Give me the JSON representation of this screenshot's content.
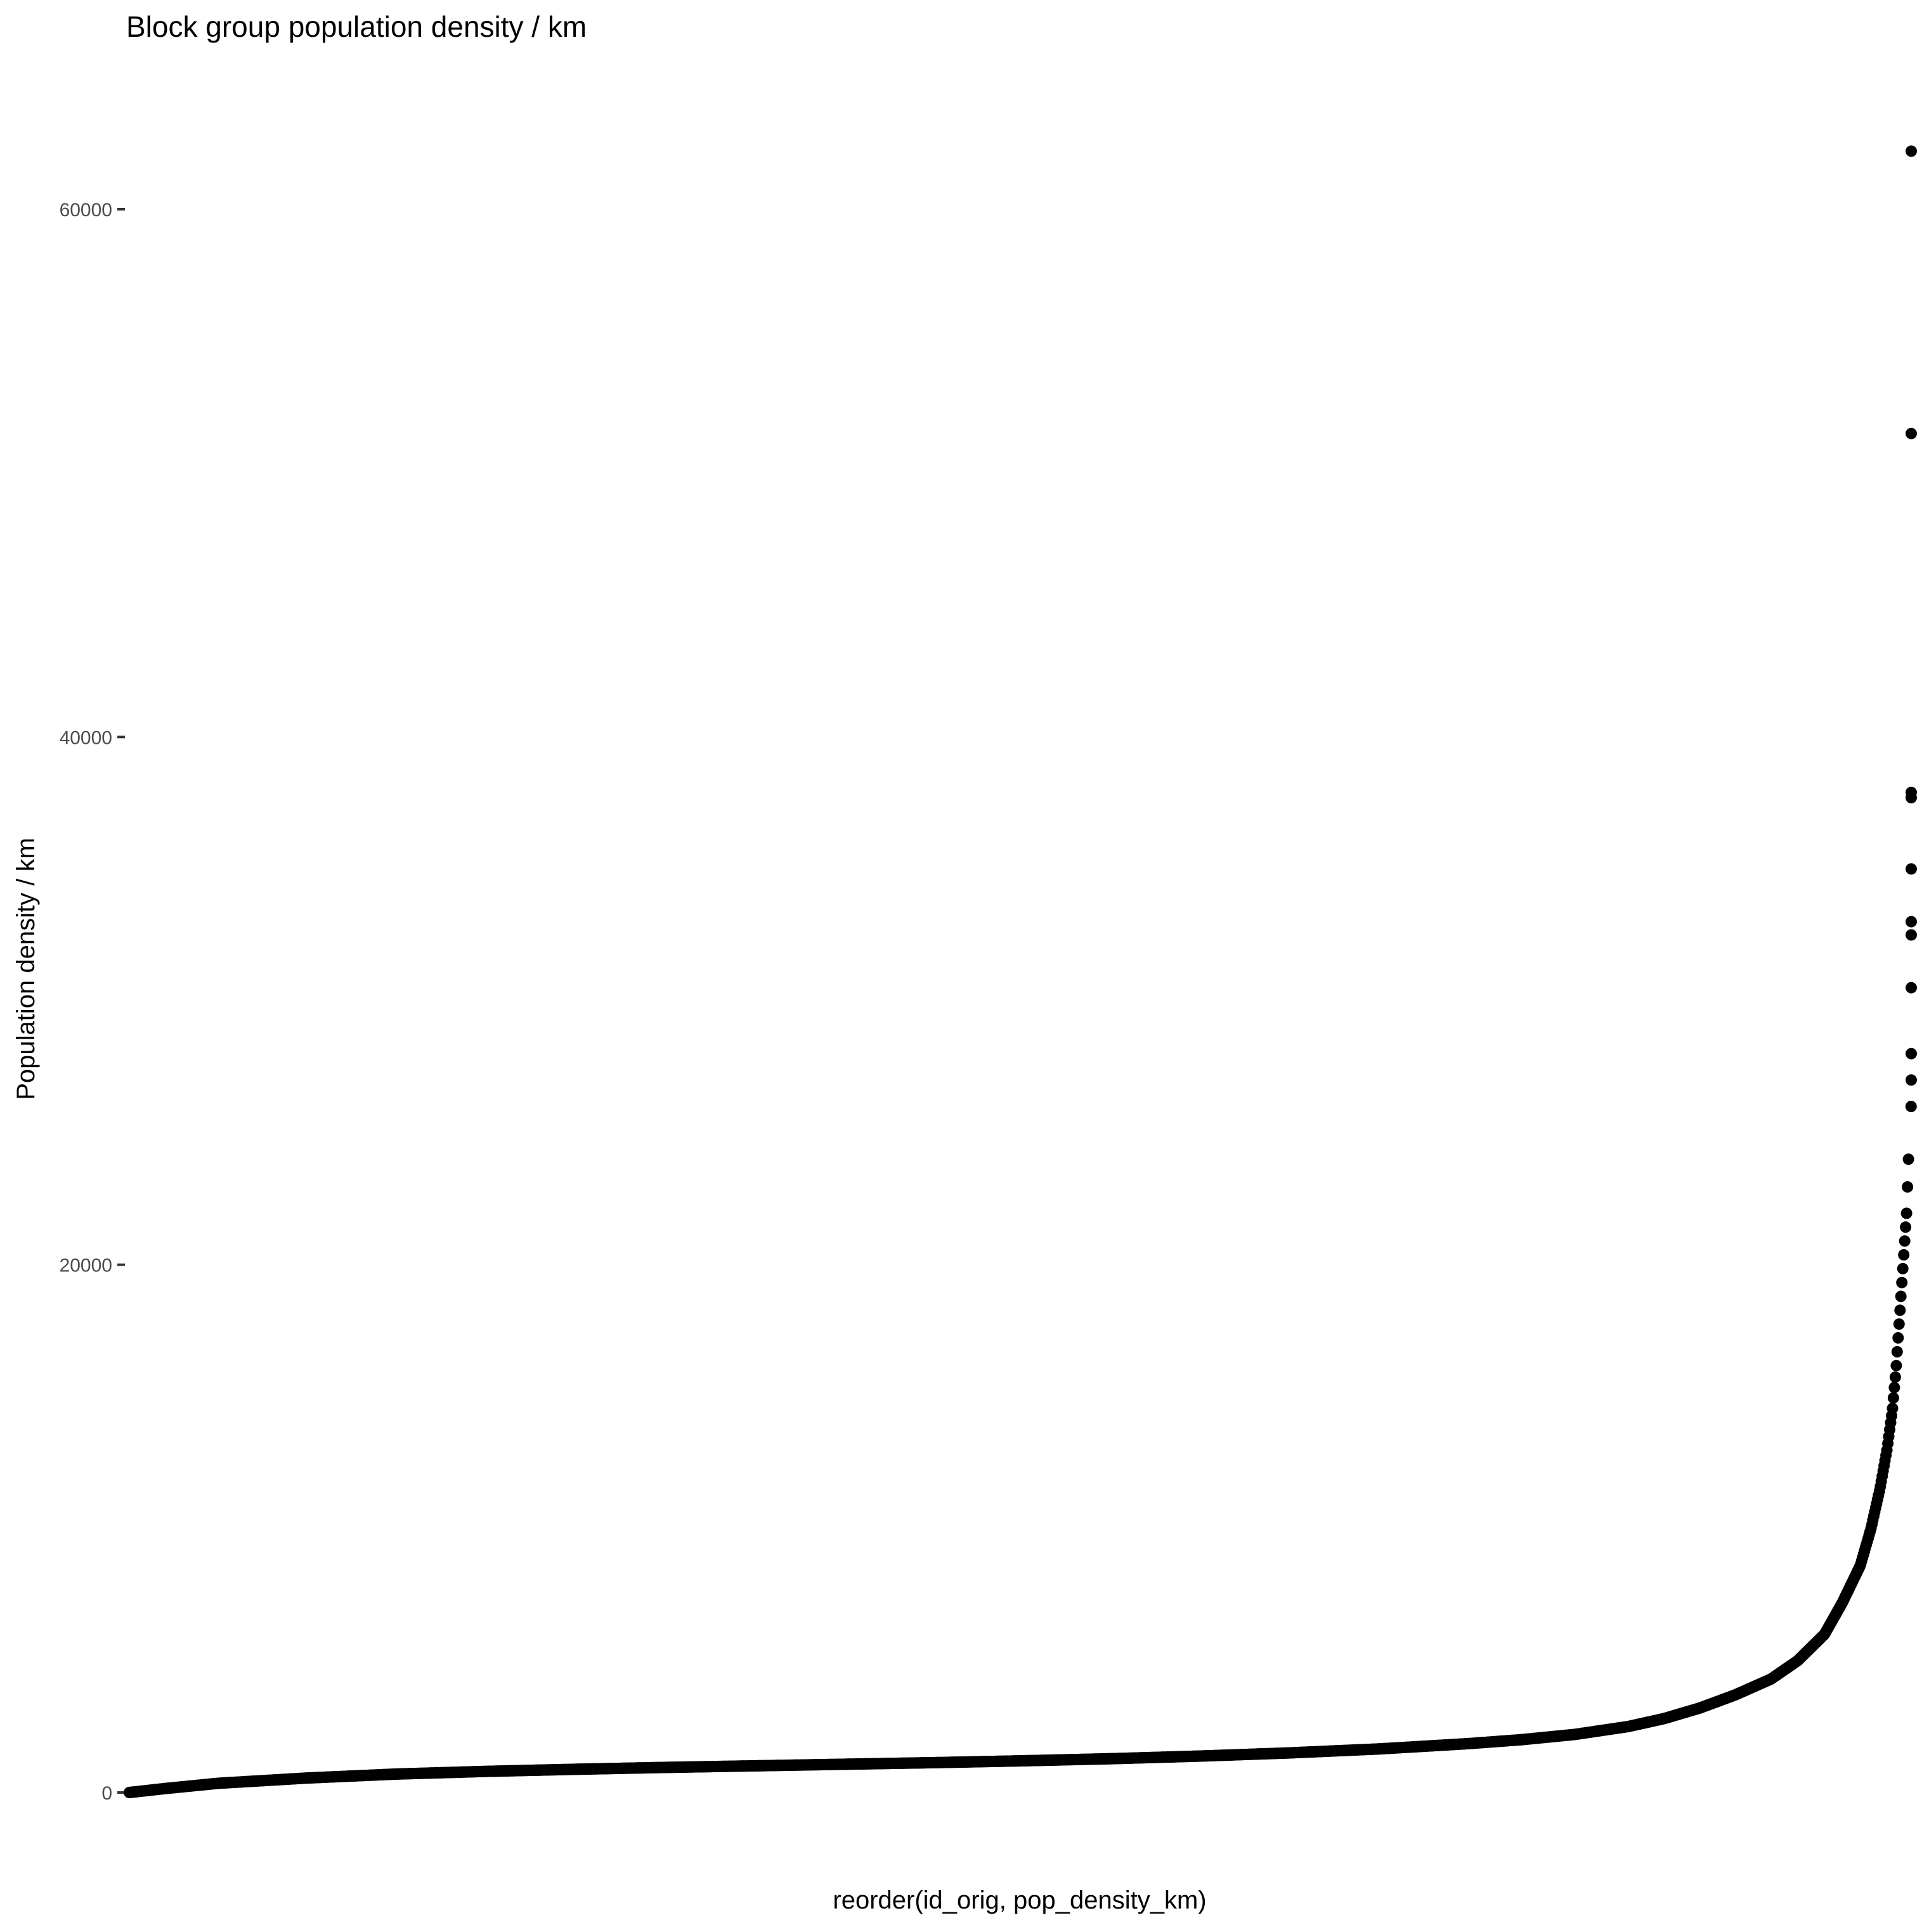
{
  "chart_data": {
    "type": "scatter",
    "title": "Block group population density / km",
    "xlabel": "reorder(id_orig, pop_density_km)",
    "ylabel": "Population density / km",
    "ylim": [
      -500,
      64000
    ],
    "yticks": [
      0,
      20000,
      40000,
      60000
    ],
    "ytick_labels": [
      "0",
      "20000",
      "40000",
      "60000"
    ],
    "grid": false,
    "x_axis_ticks_shown": false,
    "marker_color": "#000000",
    "series": [
      {
        "name": "pop_density_km",
        "curve_points": [
          {
            "rank": 0.0,
            "value": 0
          },
          {
            "rank": 0.02,
            "value": 150
          },
          {
            "rank": 0.05,
            "value": 350
          },
          {
            "rank": 0.1,
            "value": 550
          },
          {
            "rank": 0.15,
            "value": 700
          },
          {
            "rank": 0.2,
            "value": 800
          },
          {
            "rank": 0.25,
            "value": 880
          },
          {
            "rank": 0.3,
            "value": 950
          },
          {
            "rank": 0.35,
            "value": 1010
          },
          {
            "rank": 0.4,
            "value": 1070
          },
          {
            "rank": 0.45,
            "value": 1130
          },
          {
            "rank": 0.5,
            "value": 1200
          },
          {
            "rank": 0.55,
            "value": 1280
          },
          {
            "rank": 0.6,
            "value": 1380
          },
          {
            "rank": 0.65,
            "value": 1500
          },
          {
            "rank": 0.7,
            "value": 1650
          },
          {
            "rank": 0.75,
            "value": 1850
          },
          {
            "rank": 0.78,
            "value": 2000
          },
          {
            "rank": 0.81,
            "value": 2200
          },
          {
            "rank": 0.84,
            "value": 2500
          },
          {
            "rank": 0.86,
            "value": 2800
          },
          {
            "rank": 0.88,
            "value": 3200
          },
          {
            "rank": 0.9,
            "value": 3700
          },
          {
            "rank": 0.92,
            "value": 4300
          },
          {
            "rank": 0.935,
            "value": 5000
          },
          {
            "rank": 0.95,
            "value": 6000
          },
          {
            "rank": 0.96,
            "value": 7200
          },
          {
            "rank": 0.97,
            "value": 8600
          },
          {
            "rank": 0.976,
            "value": 10000
          },
          {
            "rank": 0.981,
            "value": 11500
          },
          {
            "rank": 0.985,
            "value": 13000
          },
          {
            "rank": 0.988,
            "value": 14500
          },
          {
            "rank": 0.99,
            "value": 16000
          },
          {
            "rank": 0.992,
            "value": 18000
          },
          {
            "rank": 0.994,
            "value": 20000
          },
          {
            "rank": 0.996,
            "value": 22000
          },
          {
            "rank": 0.997,
            "value": 24000
          }
        ],
        "outliers": [
          {
            "rank": 0.9985,
            "value": 26000
          },
          {
            "rank": 0.9988,
            "value": 27000
          },
          {
            "rank": 0.999,
            "value": 28000
          },
          {
            "rank": 0.9993,
            "value": 30500
          },
          {
            "rank": 0.9995,
            "value": 32500
          },
          {
            "rank": 0.9996,
            "value": 33000
          },
          {
            "rank": 0.9997,
            "value": 35000
          },
          {
            "rank": 0.9998,
            "value": 37700
          },
          {
            "rank": 0.9999,
            "value": 37900
          },
          {
            "rank": 1.0,
            "value": 51500
          },
          {
            "rank": 1.0,
            "value": 62200
          }
        ]
      }
    ]
  }
}
